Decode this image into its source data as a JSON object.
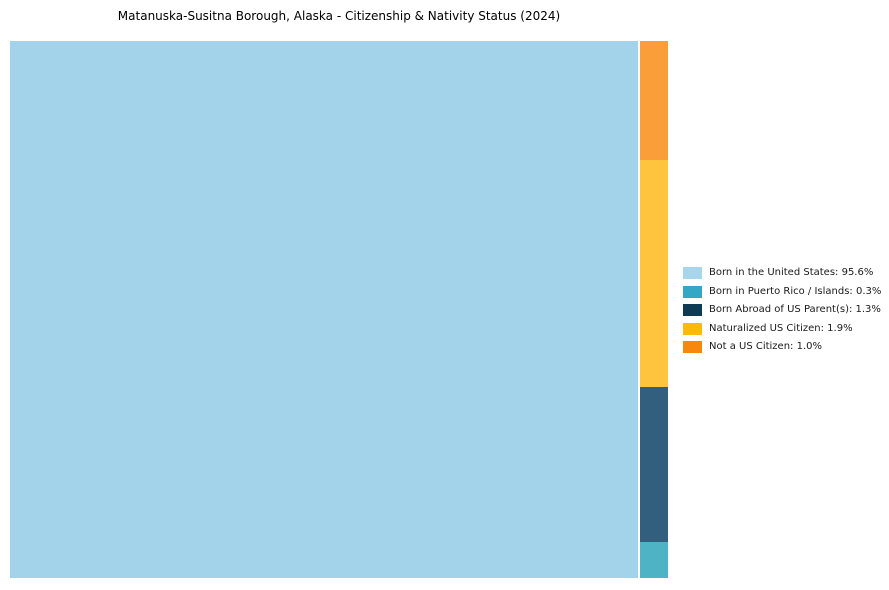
{
  "page": {
    "background_color": "#ffffff",
    "title_color": "#000000",
    "legend_text_color": "#1a1a1a"
  },
  "chart_data": {
    "type": "treemap",
    "title": "Matanuska-Susitna Borough, Alaska - Citizenship & Nativity Status (2024)",
    "legend_position": "right-center",
    "grid": false,
    "layout": "single large rect for largest category at left; remaining categories stacked top-to-bottom in reverse legend order in a narrow right column",
    "items": [
      {
        "label": "Born in the United States",
        "value_pct": 95.6,
        "legend_label": "Born in the United States: 95.6%",
        "legend_color": "#A6D5EC",
        "chart_color": "#A3D3EA"
      },
      {
        "label": "Born in Puerto Rico / Islands",
        "value_pct": 0.3,
        "legend_label": "Born in Puerto Rico / Islands: 0.3%",
        "legend_color": "#33A7C4",
        "chart_color": "#4FB3C6"
      },
      {
        "label": "Born Abroad of US Parent(s)",
        "value_pct": 1.3,
        "legend_label": "Born Abroad of US Parent(s): 1.3%",
        "legend_color": "#0E3A54",
        "chart_color": "#325F7D"
      },
      {
        "label": "Naturalized US Citizen",
        "value_pct": 1.9,
        "legend_label": "Naturalized US Citizen: 1.9%",
        "legend_color": "#FFB90A",
        "chart_color": "#FEC43D"
      },
      {
        "label": "Not a US Citizen",
        "value_pct": 1.0,
        "legend_label": "Not a US Citizen: 1.0%",
        "legend_color": "#F8870E",
        "chart_color": "#F99E38"
      }
    ]
  }
}
